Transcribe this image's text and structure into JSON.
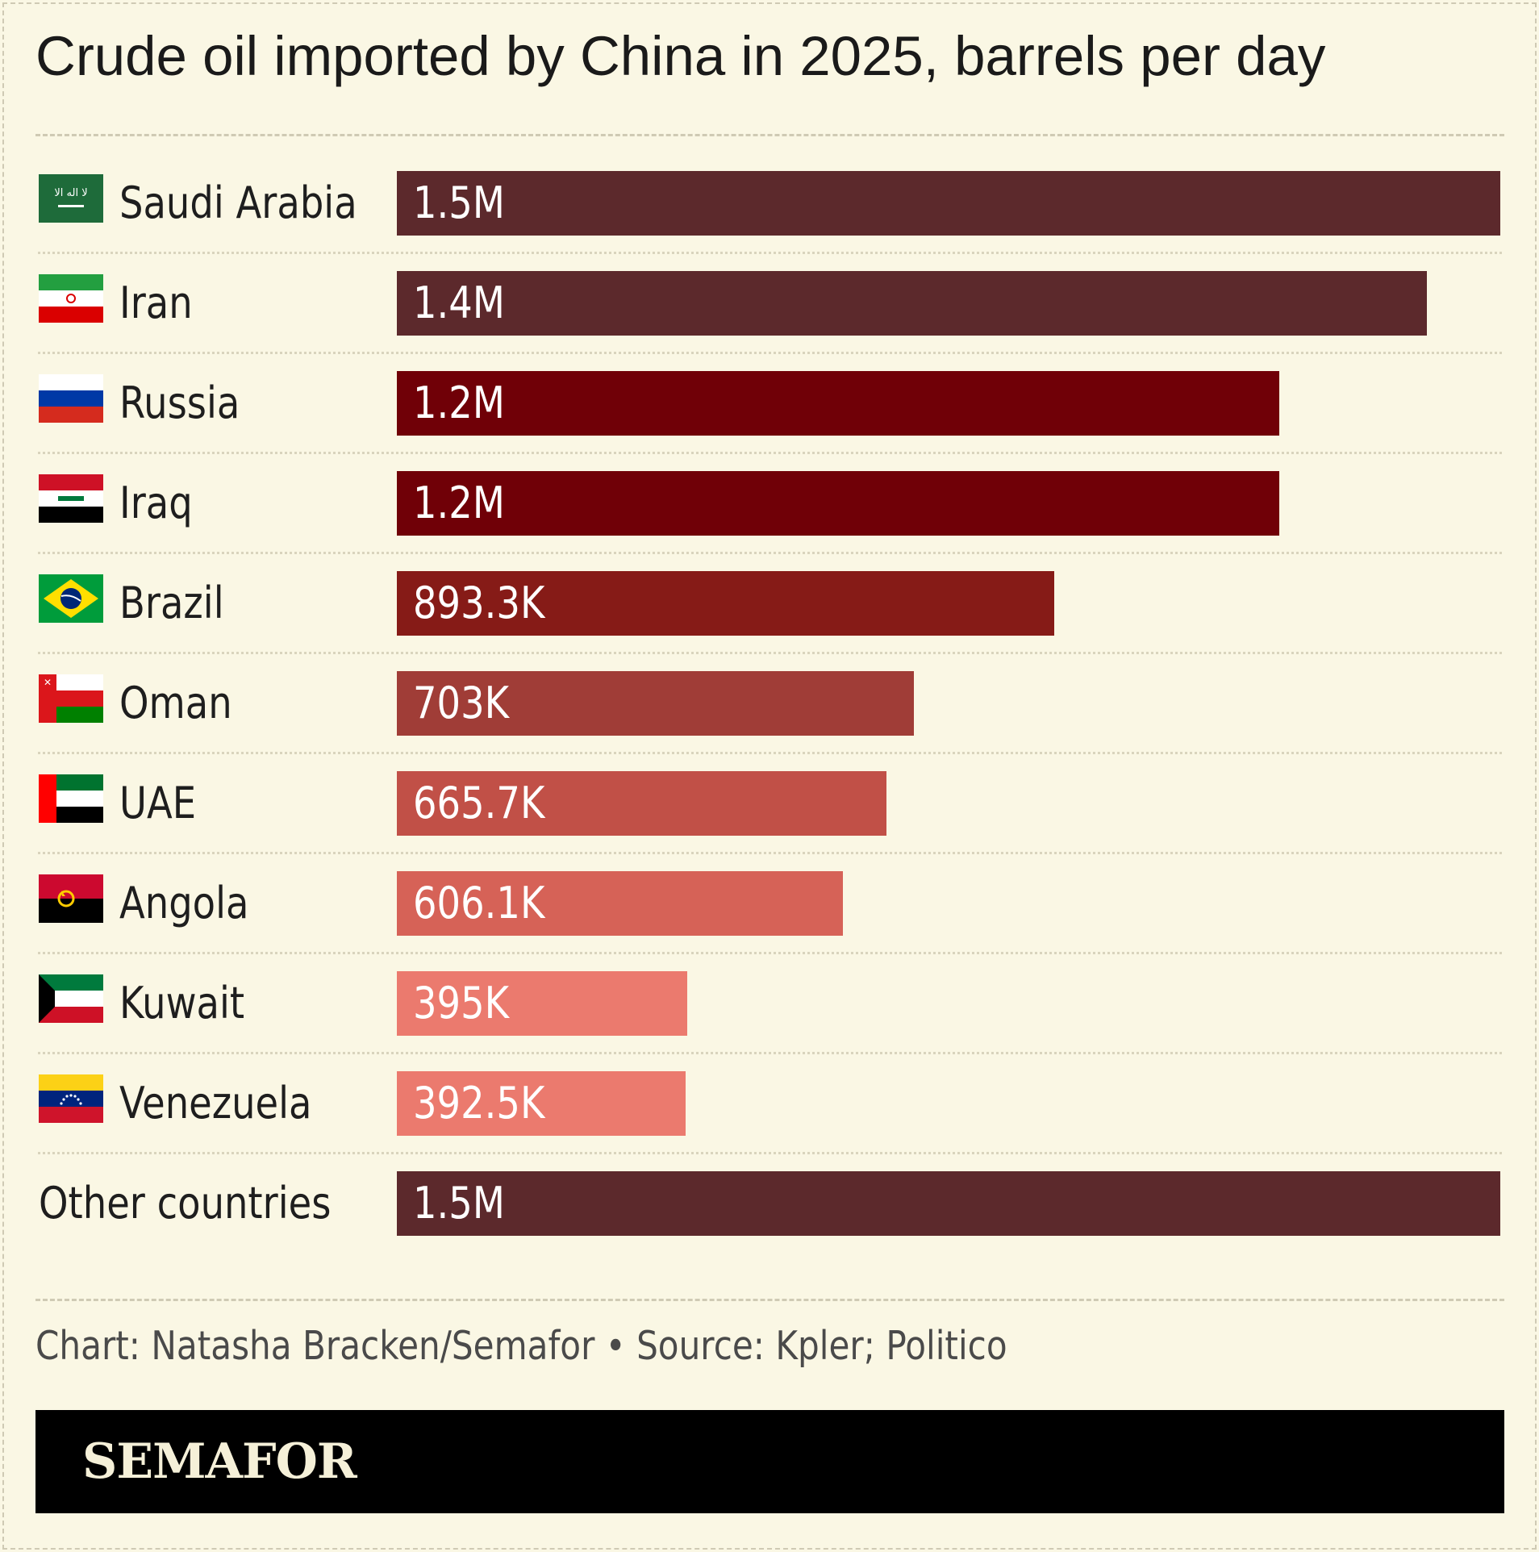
{
  "chart_data": {
    "type": "bar",
    "orientation": "horizontal",
    "title": "Crude oil imported by China in 2025, barrels per day",
    "categories": [
      "Saudi Arabia",
      "Iran",
      "Russia",
      "Iraq",
      "Brazil",
      "Oman",
      "UAE",
      "Angola",
      "Kuwait",
      "Venezuela",
      "Other countries"
    ],
    "values": [
      1500000,
      1400000,
      1200000,
      1200000,
      893300,
      703000,
      665700,
      606100,
      395000,
      392500,
      1500000
    ],
    "value_labels": [
      "1.5M",
      "1.4M",
      "1.2M",
      "1.2M",
      "893.3K",
      "703K",
      "665.7K",
      "606.1K",
      "395K",
      "392.5K",
      "1.5M"
    ],
    "bar_colors": [
      "#5c292c",
      "#5c292c",
      "#700007",
      "#700007",
      "#861b17",
      "#a03d37",
      "#c15047",
      "#d66257",
      "#eb7a6e",
      "#eb7a6e",
      "#5c292c"
    ],
    "flags": [
      "saudi-arabia",
      "iran",
      "russia",
      "iraq",
      "brazil",
      "oman",
      "uae",
      "angola",
      "kuwait",
      "venezuela",
      null
    ],
    "xlim": [
      0,
      1500000
    ],
    "grid": false
  },
  "credit": "Chart: Natasha Bracken/Semafor • Source: Kpler; Politico",
  "brand": "SEMAFOR",
  "colors": {
    "background": "#faf7e4",
    "footer": "#000000",
    "brand_text": "#f5f0d8"
  }
}
